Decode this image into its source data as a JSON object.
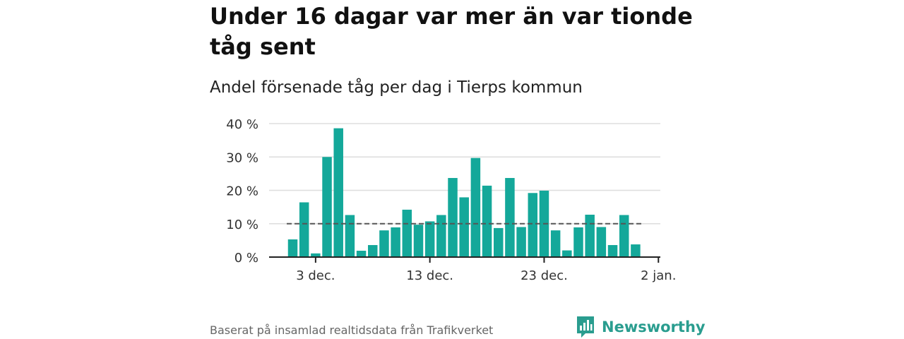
{
  "header": {
    "title": "Under 16 dagar var mer än var tionde tåg sent",
    "subtitle": "Andel försenade tåg per dag i Tierps kommun"
  },
  "footer": {
    "source": "Baserat på insamlad realtidsdata från Trafikverket",
    "logo_text": "Newsworthy"
  },
  "colors": {
    "bar": "#14a89a",
    "reference_line": "#555555",
    "grid": "#dddddd",
    "axis": "#222222",
    "logo": "#2a9d8f"
  },
  "chart_data": {
    "type": "bar",
    "x": [
      "2023-12-01",
      "2023-12-02",
      "2023-12-03",
      "2023-12-04",
      "2023-12-05",
      "2023-12-06",
      "2023-12-07",
      "2023-12-08",
      "2023-12-09",
      "2023-12-10",
      "2023-12-11",
      "2023-12-12",
      "2023-12-13",
      "2023-12-14",
      "2023-12-15",
      "2023-12-16",
      "2023-12-17",
      "2023-12-18",
      "2023-12-19",
      "2023-12-20",
      "2023-12-21",
      "2023-12-22",
      "2023-12-23",
      "2023-12-24",
      "2023-12-25",
      "2023-12-26",
      "2023-12-27",
      "2023-12-28",
      "2023-12-29",
      "2023-12-30",
      "2023-12-31"
    ],
    "values": [
      5.3,
      16.4,
      1.1,
      30.0,
      38.6,
      12.6,
      1.9,
      3.6,
      8.0,
      8.9,
      14.2,
      9.7,
      10.7,
      12.6,
      23.7,
      17.9,
      29.7,
      21.4,
      8.7,
      23.7,
      9.0,
      19.2,
      19.9,
      8.0,
      2.0,
      8.9,
      12.7,
      9.0,
      3.6,
      12.6,
      3.8
    ],
    "reference_line": 10,
    "ylim": [
      0,
      40
    ],
    "yticks": [
      {
        "value": 0,
        "label": "0 %"
      },
      {
        "value": 10,
        "label": "10 %"
      },
      {
        "value": 20,
        "label": "20 %"
      },
      {
        "value": 30,
        "label": "30 %"
      },
      {
        "value": 40,
        "label": "40 %"
      }
    ],
    "xticks": [
      {
        "date": "2023-12-03",
        "label": "3 dec."
      },
      {
        "date": "2023-12-13",
        "label": "13 dec."
      },
      {
        "date": "2023-12-23",
        "label": "23 dec."
      },
      {
        "date": "2024-01-02",
        "label": "2 jan."
      }
    ],
    "grid": true
  }
}
